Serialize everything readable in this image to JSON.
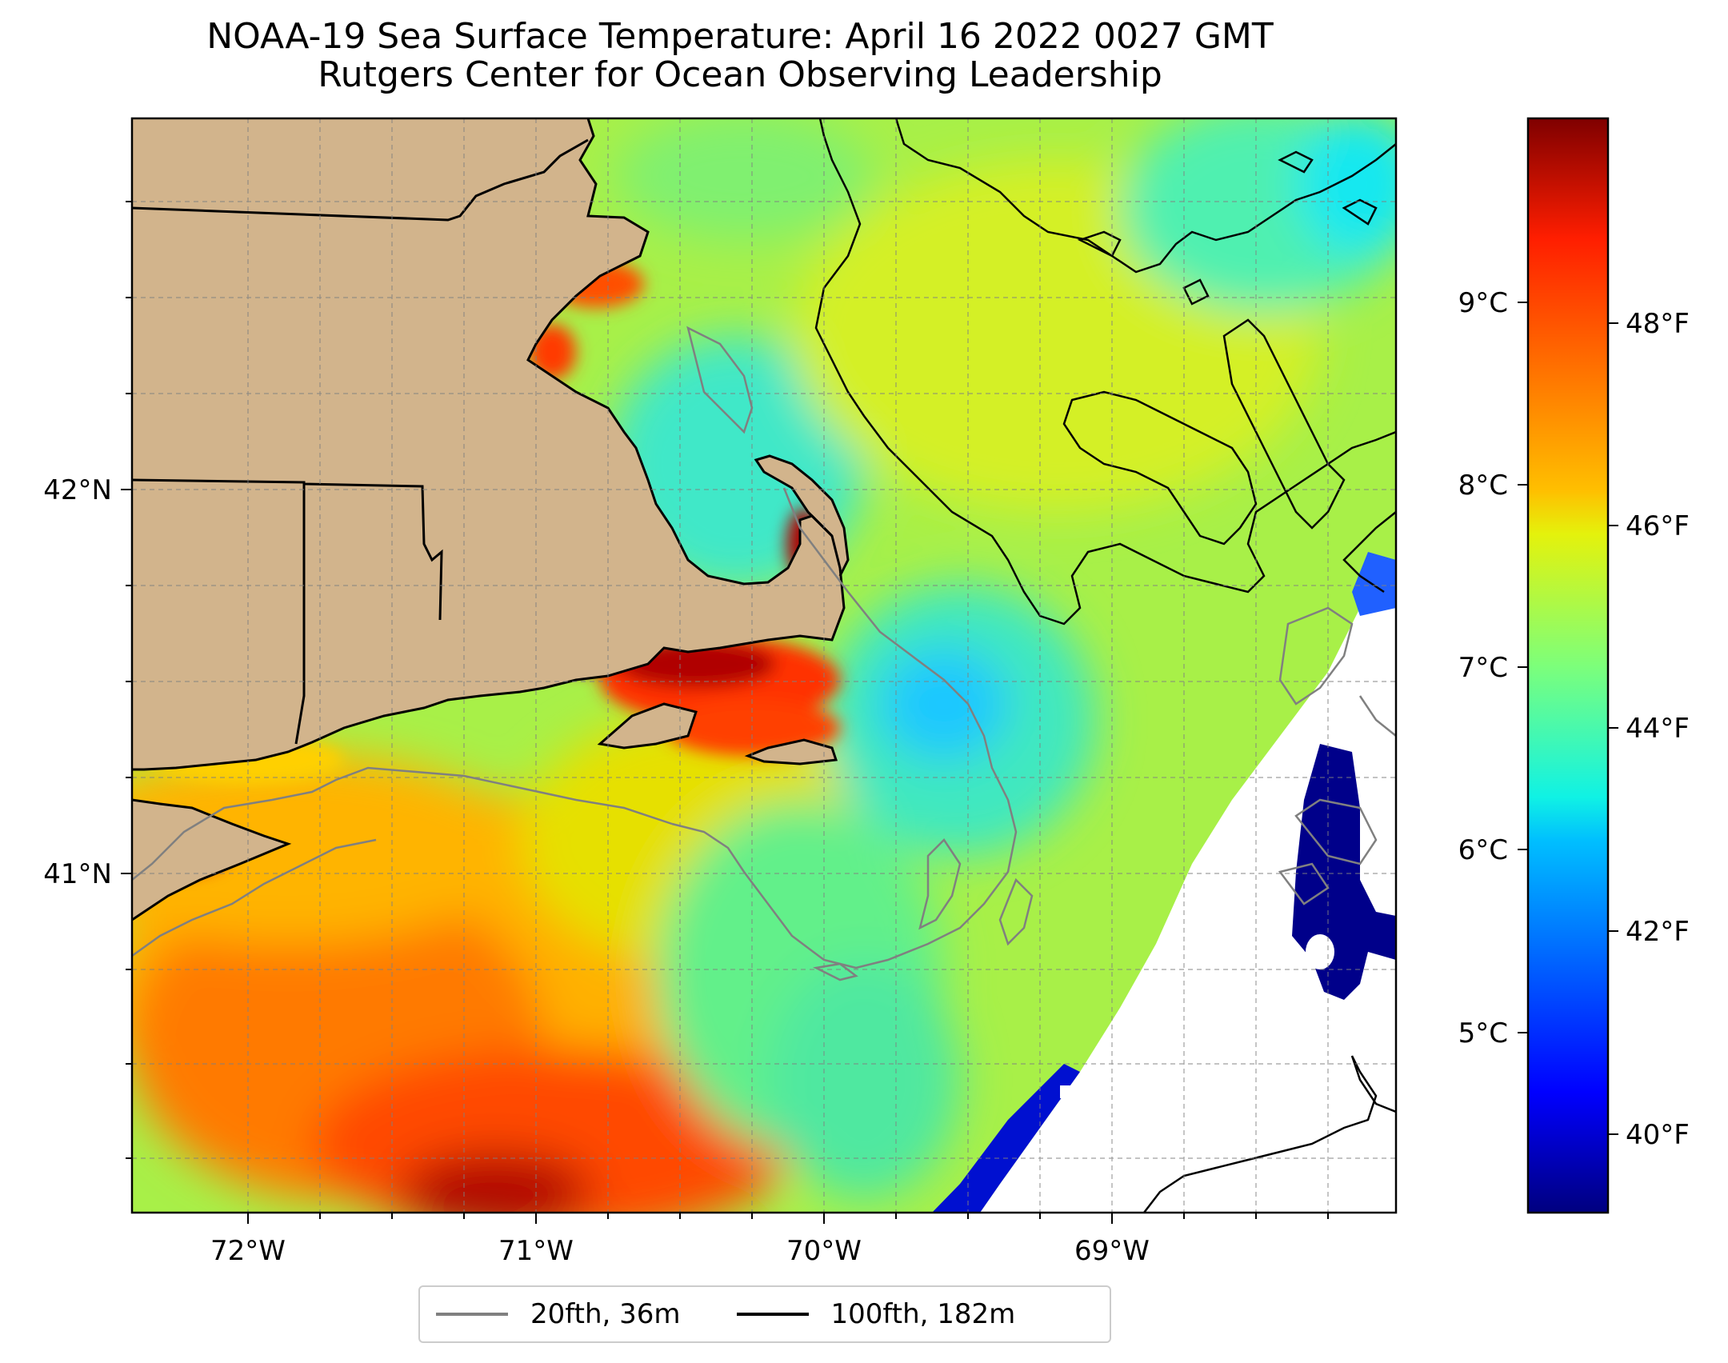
{
  "title": {
    "line1": "NOAA-19 Sea Surface Temperature: April 16 2022 0027 GMT",
    "line2": "Rutgers Center for Ocean Observing Leadership"
  },
  "map": {
    "region": "Southern New England / Cape Cod / Georges Bank",
    "x_axis": {
      "labels": [
        "72°W",
        "71°W",
        "70°W",
        "69°W"
      ],
      "values": [
        -72,
        -71,
        -70,
        -69
      ]
    },
    "y_axis": {
      "labels": [
        "42°N",
        "41°N"
      ],
      "values": [
        42,
        41
      ]
    },
    "extent": {
      "lon": [
        -72.4,
        -68.0
      ],
      "lat": [
        40.1,
        42.95
      ]
    },
    "land_color": "#d2b48c",
    "gridlines": true
  },
  "colorbar": {
    "colormap": "jet",
    "celsius": {
      "labels": [
        "9°C",
        "8°C",
        "7°C",
        "6°C",
        "5°C"
      ],
      "values": [
        9,
        8,
        7,
        6,
        5
      ]
    },
    "fahrenheit": {
      "labels": [
        "48°F",
        "46°F",
        "44°F",
        "42°F",
        "40°F"
      ],
      "values": [
        48,
        46,
        44,
        42,
        40
      ]
    },
    "range_f": [
      39,
      50
    ]
  },
  "legend": {
    "items": [
      {
        "label": "20fth, 36m",
        "color": "#808080"
      },
      {
        "label": "100fth, 182m",
        "color": "#000000"
      }
    ]
  }
}
